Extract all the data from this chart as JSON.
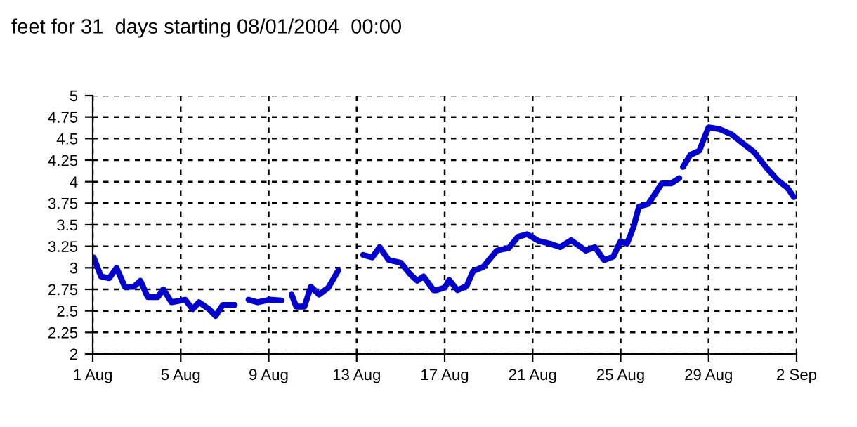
{
  "chart_data": {
    "type": "line",
    "title": "feet for 31  days starting 08/01/2004  00:00",
    "x": [
      "2004-08-01T01:00",
      "2004-08-01T09:00",
      "2004-08-01T18:00",
      "2004-08-02T02:00",
      "2004-08-02T11:00",
      "2004-08-02T21:00",
      "2004-08-03T04:00",
      "2004-08-03T12:00",
      "2004-08-03T23:00",
      "2004-08-04T05:00",
      "2004-08-04T14:00",
      "2004-08-05T05:00",
      "2004-08-05T13:00",
      "2004-08-05T20:00",
      "2004-08-06T07:00",
      "2004-08-06T14:00",
      "2004-08-06T22:00",
      "2004-08-07T11:00",
      "2004-08-07T19:00",
      "2004-08-08T02:00",
      "2004-08-08T12:00",
      "2004-08-09T01:00",
      "2004-08-09T14:00",
      "2004-08-09T19:00",
      "2004-08-10T01:00",
      "2004-08-10T06:00",
      "2004-08-10T15:00",
      "2004-08-10T22:00",
      "2004-08-11T07:00",
      "2004-08-11T17:00",
      "2004-08-12T04:00",
      "2004-08-12T17:00",
      "2004-08-13T07:00",
      "2004-08-13T17:00",
      "2004-08-14T01:00",
      "2004-08-14T11:00",
      "2004-08-15T00:00",
      "2004-08-15T10:00",
      "2004-08-15T18:00",
      "2004-08-16T01:00",
      "2004-08-16T12:00",
      "2004-08-16T15:00",
      "2004-08-17T00:00",
      "2004-08-17T05:00",
      "2004-08-17T14:00",
      "2004-08-18T00:00",
      "2004-08-18T07:00",
      "2004-08-18T18:00",
      "2004-08-19T09:00",
      "2004-08-19T22:00",
      "2004-08-20T08:00",
      "2004-08-20T18:00",
      "2004-08-21T07:00",
      "2004-08-21T19:00",
      "2004-08-22T06:00",
      "2004-08-22T18:00",
      "2004-08-23T10:00",
      "2004-08-23T20:00",
      "2004-08-24T06:00",
      "2004-08-24T16:00",
      "2004-08-25T00:00",
      "2004-08-25T07:00",
      "2004-08-25T14:00",
      "2004-08-25T20:00",
      "2004-08-26T06:00",
      "2004-08-26T13:00",
      "2004-08-26T21:00",
      "2004-08-27T07:00",
      "2004-08-27T16:00",
      "2004-08-27T18:00",
      "2004-08-27T20:00",
      "2004-08-28T04:00",
      "2004-08-28T14:00",
      "2004-08-28T19:00",
      "2004-08-29T00:00",
      "2004-08-29T12:00",
      "2004-08-30T01:00",
      "2004-08-30T14:00",
      "2004-08-31T02:00",
      "2004-08-31T16:00",
      "2004-09-01T04:00",
      "2004-09-01T14:00",
      "2004-09-01T21:00"
    ],
    "series": [
      {
        "color": "#0000cc",
        "values": [
          3.12,
          2.9,
          2.88,
          3.0,
          2.78,
          2.78,
          2.85,
          2.66,
          2.66,
          2.75,
          2.6,
          2.63,
          2.52,
          2.6,
          2.52,
          2.44,
          2.57,
          2.57,
          null,
          2.63,
          2.6,
          2.63,
          2.62,
          null,
          2.69,
          2.55,
          2.55,
          2.78,
          2.69,
          2.77,
          2.97,
          null,
          3.15,
          3.12,
          3.24,
          3.09,
          3.06,
          2.93,
          2.85,
          2.9,
          2.74,
          2.74,
          2.77,
          2.86,
          2.74,
          2.79,
          2.96,
          3.01,
          3.2,
          3.23,
          3.36,
          3.39,
          3.31,
          3.28,
          3.24,
          3.32,
          3.2,
          3.24,
          3.09,
          3.13,
          3.31,
          3.28,
          3.47,
          3.71,
          3.74,
          3.85,
          3.98,
          3.98,
          4.04,
          null,
          4.17,
          4.31,
          4.36,
          4.5,
          4.63,
          4.61,
          4.55,
          4.44,
          4.34,
          4.15,
          4.01,
          3.93,
          3.82
        ]
      }
    ],
    "xlim": [
      "2004-08-01",
      "2004-09-02"
    ],
    "xticks": [
      {
        "value": "2004-08-01",
        "label": "1 Aug"
      },
      {
        "value": "2004-08-05",
        "label": "5 Aug"
      },
      {
        "value": "2004-08-09",
        "label": "9 Aug"
      },
      {
        "value": "2004-08-13",
        "label": "13 Aug"
      },
      {
        "value": "2004-08-17",
        "label": "17 Aug"
      },
      {
        "value": "2004-08-21",
        "label": "21 Aug"
      },
      {
        "value": "2004-08-25",
        "label": "25 Aug"
      },
      {
        "value": "2004-08-29",
        "label": "29 Aug"
      },
      {
        "value": "2004-09-02",
        "label": "2 Sep"
      }
    ],
    "ylim": [
      2,
      5
    ],
    "yticks": [
      2,
      2.25,
      2.5,
      2.75,
      3,
      3.25,
      3.5,
      3.75,
      4,
      4.25,
      4.5,
      4.75,
      5
    ],
    "grid": true,
    "line_style": "solid",
    "marker": "none"
  }
}
